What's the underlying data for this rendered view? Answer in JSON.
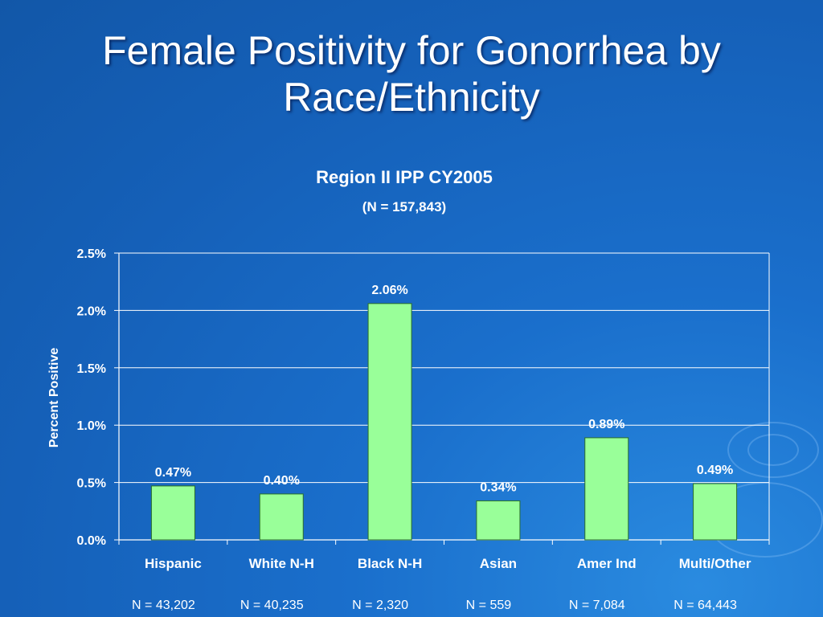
{
  "slide": {
    "title_line1": "Female Positivity for Gonorrhea by",
    "title_line2": "Race/Ethnicity"
  },
  "colors": {
    "bar_fill": "#99ff99",
    "bar_stroke": "#2a6e2a",
    "background": "#1a6fcc",
    "text": "#ffffff"
  },
  "chart_data": {
    "type": "bar",
    "title": "Region II IPP CY2005",
    "subtitle": "(N = 157,843)",
    "ylabel": "Percent Positive",
    "xlabel": "",
    "ylim": [
      0,
      2.5
    ],
    "yticks": [
      0,
      0.5,
      1.0,
      1.5,
      2.0,
      2.5
    ],
    "ytick_labels": [
      "0.0%",
      "0.5%",
      "1.0%",
      "1.5%",
      "2.0%",
      "2.5%"
    ],
    "grid": true,
    "legend": "none",
    "categories": [
      "Hispanic",
      "White N-H",
      "Black N-H",
      "Asian",
      "Amer Ind",
      "Multi/Other"
    ],
    "values": [
      0.47,
      0.4,
      2.06,
      0.34,
      0.89,
      0.49
    ],
    "data_labels": [
      "0.47%",
      "0.40%",
      "2.06%",
      "0.34%",
      "0.89%",
      "0.49%"
    ],
    "n_labels": [
      "N = 43,202",
      "N = 40,235",
      "N = 2,320",
      "N = 559",
      "N = 7,084",
      "N = 64,443"
    ]
  }
}
